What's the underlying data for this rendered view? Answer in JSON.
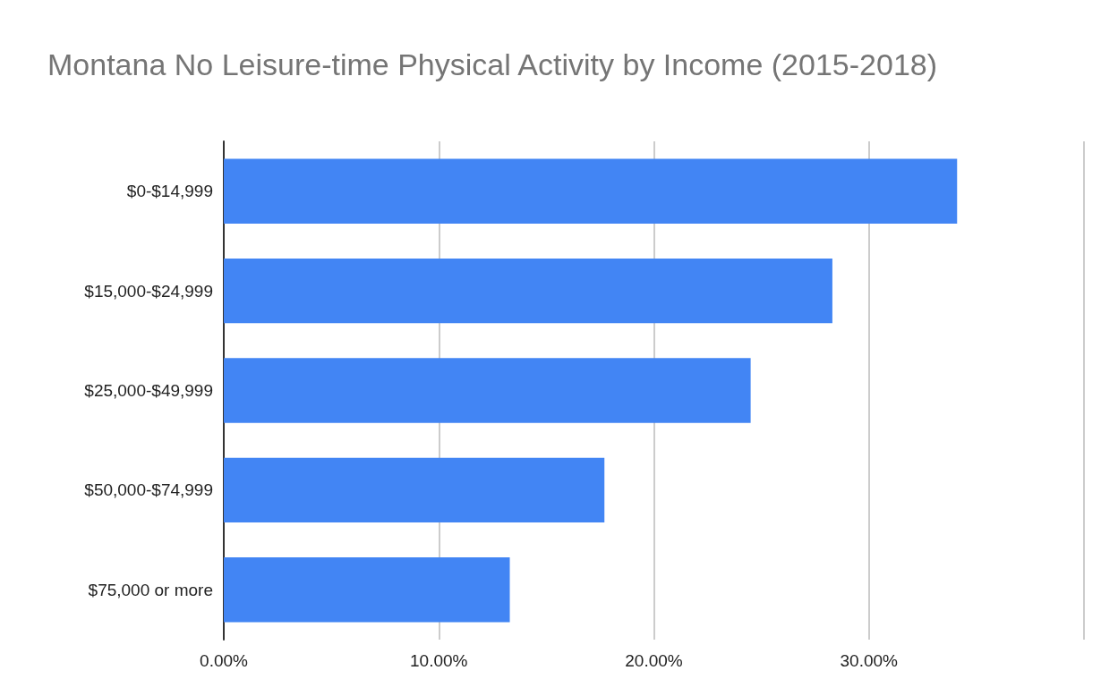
{
  "chart_data": {
    "type": "bar",
    "orientation": "horizontal",
    "title": "Montana No Leisure-time Physical Activity by Income (2015-2018)",
    "categories": [
      "$0-$14,999",
      "$15,000-$24,999",
      "$25,000-$49,999",
      "$50,000-$74,999",
      "$75,000 or more"
    ],
    "values": [
      34.1,
      28.3,
      24.5,
      17.7,
      13.3
    ],
    "color": "#4285f4",
    "xlim": [
      0,
      40
    ],
    "xticks": [
      {
        "value": 0,
        "label": "0.00%"
      },
      {
        "value": 10,
        "label": "10.00%"
      },
      {
        "value": 20,
        "label": "20.00%"
      },
      {
        "value": 30,
        "label": "30.00%"
      },
      {
        "value": 40,
        "label": null
      }
    ],
    "grid": "x"
  }
}
